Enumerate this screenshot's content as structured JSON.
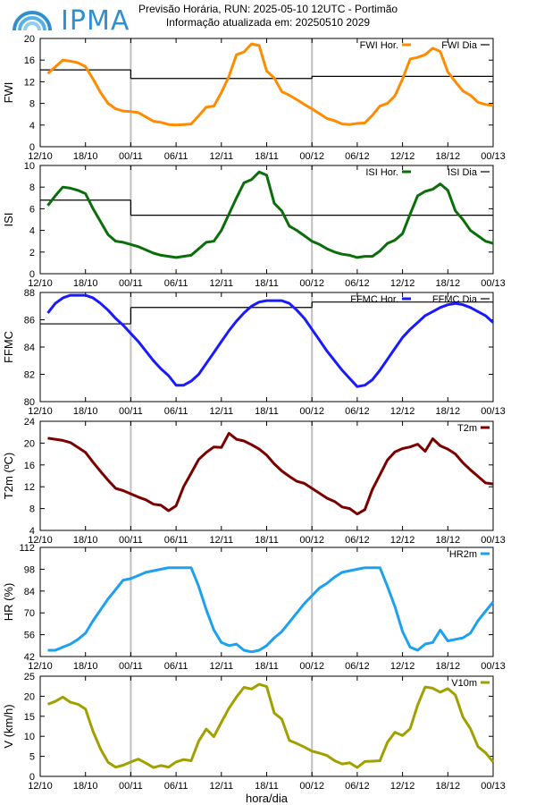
{
  "header": {
    "logo_text": "IPMA",
    "title_line1": "Previsão Horária, RUN: 2025-05-10 12UTC - Portimão",
    "title_line2": "Informação atualizada em: 20250510 2029"
  },
  "colors": {
    "fwi": "#ff8c00",
    "isi": "#0a6e0a",
    "ffmc": "#1a1aff",
    "t2m": "#7a0000",
    "hr2m": "#1ea0f0",
    "v10m": "#a0a000",
    "daily": "#000000",
    "dayline": "#c0c0c0"
  },
  "chart_data": [
    {
      "id": "fwi",
      "type": "line",
      "ylabel": "FWI",
      "ylim": [
        0,
        20
      ],
      "yticks": [
        "0",
        "4",
        "8",
        "12",
        "16",
        "20"
      ],
      "xticks": [
        "12/10",
        "18/10",
        "00/11",
        "06/11",
        "12/11",
        "18/11",
        "00/12",
        "06/12",
        "12/12",
        "18/12",
        "00/13"
      ],
      "legend": [
        "FWI Hor.",
        "FWI Dia"
      ],
      "series": [
        {
          "name": "FWI Hor.",
          "x": [
            13,
            15,
            16,
            17,
            18,
            19,
            20,
            21,
            22,
            23,
            24,
            25,
            26,
            27,
            28,
            29,
            30,
            31,
            32,
            33,
            34,
            35,
            36,
            37,
            38,
            39,
            40,
            41,
            42,
            43,
            44,
            45,
            46,
            47,
            48,
            49,
            50,
            51,
            52,
            53,
            54,
            55,
            56,
            57,
            58,
            59,
            60,
            61,
            62,
            63,
            64,
            65,
            66,
            67,
            68,
            69,
            70,
            71,
            72
          ],
          "y": [
            13.5,
            16,
            15.8,
            15.5,
            14.8,
            12.5,
            10,
            8,
            7,
            6.6,
            6.5,
            6.3,
            5.5,
            4.7,
            4.5,
            4.1,
            4,
            4.1,
            4.2,
            5.7,
            7.3,
            7.5,
            10,
            13,
            17,
            17.5,
            19,
            18.7,
            14,
            12.7,
            10.2,
            9.5,
            8.7,
            7.8,
            7,
            6.1,
            5.2,
            4.8,
            4.2,
            4.1,
            4.3,
            4.4,
            5.8,
            7.5,
            8,
            9.4,
            12.5,
            16.2,
            16.5,
            17,
            18.2,
            17.6,
            13.8,
            12,
            10.3,
            9.5,
            8.2,
            7.8,
            7.6
          ]
        }
      ],
      "daily": [
        {
          "from": 12,
          "to": 24,
          "y": 14.2
        },
        {
          "from": 24,
          "to": 48,
          "y": 12.6
        },
        {
          "from": 48,
          "to": 72,
          "y": 13.0
        }
      ]
    },
    {
      "id": "isi",
      "type": "line",
      "ylabel": "ISI",
      "ylim": [
        0,
        10
      ],
      "yticks": [
        "0",
        "2",
        "4",
        "6",
        "8",
        "10"
      ],
      "xticks": [
        "12/10",
        "18/10",
        "00/11",
        "06/11",
        "12/11",
        "18/11",
        "00/12",
        "06/12",
        "12/12",
        "18/12",
        "00/13"
      ],
      "legend": [
        "ISI Hor.",
        "ISI Dia"
      ],
      "series": [
        {
          "name": "ISI Hor.",
          "x": [
            13,
            14,
            15,
            16,
            17,
            18,
            19,
            20,
            21,
            22,
            23,
            24,
            25,
            26,
            27,
            28,
            29,
            30,
            31,
            32,
            33,
            34,
            35,
            36,
            37,
            38,
            39,
            40,
            41,
            42,
            43,
            44,
            45,
            46,
            47,
            48,
            49,
            50,
            51,
            52,
            53,
            54,
            55,
            56,
            57,
            58,
            59,
            60,
            61,
            62,
            63,
            64,
            65,
            66,
            67,
            68,
            69,
            70,
            71,
            72
          ],
          "y": [
            6.3,
            7.2,
            8,
            7.9,
            7.7,
            7.4,
            6,
            4.8,
            3.6,
            3,
            2.9,
            2.7,
            2.5,
            2.2,
            1.9,
            1.7,
            1.6,
            1.5,
            1.6,
            1.7,
            2.3,
            2.9,
            3,
            4,
            5.5,
            7,
            8.4,
            8.7,
            9.4,
            9.1,
            6.5,
            5.8,
            4.4,
            4,
            3.5,
            3,
            2.7,
            2.3,
            2,
            1.8,
            1.7,
            1.5,
            1.6,
            1.6,
            2.1,
            2.8,
            3.1,
            3.7,
            5.5,
            7.2,
            7.6,
            7.8,
            8.3,
            7.7,
            5.8,
            5,
            4,
            3.5,
            3,
            2.8
          ]
        }
      ],
      "daily": [
        {
          "from": 12,
          "to": 24,
          "y": 6.8
        },
        {
          "from": 24,
          "to": 48,
          "y": 5.4
        },
        {
          "from": 48,
          "to": 72,
          "y": 5.4
        }
      ]
    },
    {
      "id": "ffmc",
      "type": "line",
      "ylabel": "FFMC",
      "ylim": [
        80,
        88
      ],
      "yticks": [
        "80",
        "82",
        "84",
        "86",
        "88"
      ],
      "xticks": [
        "12/10",
        "18/10",
        "00/11",
        "06/11",
        "12/11",
        "18/11",
        "00/12",
        "06/12",
        "12/12",
        "18/12",
        "00/13"
      ],
      "legend": [
        "FFMC Hor.",
        "FFMC Dia"
      ],
      "series": [
        {
          "name": "FFMC Hor.",
          "x": [
            13,
            14,
            15,
            16,
            17,
            18,
            19,
            20,
            21,
            22,
            23,
            24,
            25,
            26,
            27,
            28,
            29,
            30,
            31,
            32,
            33,
            34,
            35,
            36,
            37,
            38,
            39,
            40,
            41,
            42,
            43,
            44,
            45,
            46,
            47,
            48,
            49,
            50,
            51,
            52,
            53,
            54,
            55,
            56,
            57,
            58,
            59,
            60,
            61,
            62,
            63,
            64,
            65,
            66,
            67,
            68,
            69,
            70,
            71,
            72
          ],
          "y": [
            86.5,
            87.2,
            87.6,
            87.8,
            87.8,
            87.8,
            87.6,
            87.2,
            86.7,
            86.1,
            85.6,
            85,
            84.4,
            83.7,
            83,
            82.4,
            81.9,
            81.2,
            81.2,
            81.5,
            82,
            82.8,
            83.6,
            84.4,
            85.2,
            85.9,
            86.5,
            87,
            87.3,
            87.4,
            87.4,
            87.4,
            87.2,
            86.7,
            86.1,
            85.3,
            84.5,
            83.7,
            83,
            82.3,
            81.7,
            81.1,
            81.2,
            81.6,
            82.3,
            83.1,
            83.9,
            84.7,
            85.3,
            85.8,
            86.3,
            86.6,
            86.9,
            87.1,
            87.2,
            87.1,
            86.9,
            86.6,
            86.3,
            85.8
          ]
        }
      ],
      "daily": [
        {
          "from": 12,
          "to": 24,
          "y": 85.7
        },
        {
          "from": 24,
          "to": 48,
          "y": 86.9
        },
        {
          "from": 48,
          "to": 72,
          "y": 87.3
        }
      ]
    },
    {
      "id": "t2m",
      "type": "line",
      "ylabel": "T2m (ºC)",
      "ylim": [
        4,
        24
      ],
      "yticks": [
        "4",
        "8",
        "12",
        "16",
        "20",
        "24"
      ],
      "xticks": [
        "12/10",
        "18/10",
        "00/11",
        "06/11",
        "12/11",
        "18/11",
        "00/12",
        "06/12",
        "12/12",
        "18/12",
        "00/13"
      ],
      "legend": [
        "T2m"
      ],
      "series": [
        {
          "name": "T2m",
          "x": [
            13,
            14,
            15,
            16,
            17,
            18,
            19,
            20,
            21,
            22,
            23,
            24,
            25,
            26,
            27,
            28,
            29,
            30,
            31,
            32,
            33,
            34,
            35,
            36,
            37,
            38,
            39,
            40,
            41,
            42,
            43,
            44,
            45,
            46,
            47,
            48,
            49,
            50,
            51,
            52,
            53,
            54,
            55,
            56,
            57,
            58,
            59,
            60,
            61,
            62,
            63,
            64,
            65,
            66,
            67,
            68,
            69,
            70,
            71,
            72
          ],
          "y": [
            20.9,
            20.7,
            20.5,
            20.1,
            19.2,
            18.3,
            16.5,
            14.8,
            13.2,
            11.7,
            11.3,
            10.7,
            10.1,
            9.6,
            8.8,
            8.6,
            7.6,
            8.5,
            12,
            14.5,
            17,
            18.3,
            19.3,
            19.2,
            21.8,
            20.7,
            20.4,
            19.7,
            18.9,
            17.8,
            16.2,
            14.9,
            13.9,
            13,
            12.6,
            11.7,
            10.8,
            9.9,
            9.3,
            8.3,
            8,
            7,
            7.8,
            11.5,
            14.2,
            16.9,
            18.4,
            19,
            19.3,
            19.8,
            18.5,
            20.8,
            19.5,
            18.9,
            18,
            16.4,
            15.1,
            13.9,
            12.7,
            12.5
          ]
        }
      ]
    },
    {
      "id": "hr2m",
      "type": "line",
      "ylabel": "HR (%)",
      "ylim": [
        42,
        112
      ],
      "yticks": [
        "42",
        "56",
        "70",
        "84",
        "98",
        "112"
      ],
      "xticks": [
        "12/10",
        "18/10",
        "00/11",
        "06/11",
        "12/11",
        "18/11",
        "00/12",
        "06/12",
        "12/12",
        "18/12",
        "00/13"
      ],
      "legend": [
        "HR2m"
      ],
      "series": [
        {
          "name": "HR2m",
          "x": [
            13,
            14,
            15,
            16,
            17,
            18,
            19,
            20,
            21,
            22,
            23,
            24,
            25,
            26,
            27,
            28,
            29,
            30,
            31,
            32,
            33,
            34,
            35,
            36,
            37,
            38,
            39,
            40,
            41,
            42,
            43,
            44,
            45,
            46,
            47,
            48,
            49,
            50,
            51,
            52,
            53,
            54,
            55,
            56,
            57,
            58,
            59,
            60,
            61,
            62,
            63,
            64,
            65,
            66,
            67,
            68,
            69,
            70,
            71,
            72
          ],
          "y": [
            46,
            46,
            48,
            50,
            53,
            57,
            65,
            72,
            79,
            85,
            91,
            92,
            94,
            96,
            97,
            98,
            99,
            99,
            99,
            99,
            87,
            72,
            59,
            51,
            49,
            50,
            46,
            45,
            46,
            49,
            54,
            58,
            64,
            70,
            76,
            81,
            86,
            89,
            93,
            96,
            97,
            98,
            99,
            99,
            99,
            87,
            74,
            58,
            48,
            46,
            50,
            51,
            59,
            52,
            53,
            54,
            57,
            65,
            71,
            77
          ]
        }
      ]
    },
    {
      "id": "v10m",
      "type": "line",
      "ylabel": "V (km/h)",
      "ylim": [
        0,
        25
      ],
      "yticks": [
        "0",
        "5",
        "10",
        "15",
        "20",
        "25"
      ],
      "xticks": [
        "12/10",
        "18/10",
        "00/11",
        "06/11",
        "12/11",
        "18/11",
        "00/12",
        "06/12",
        "12/12",
        "18/12",
        "00/13"
      ],
      "xlabel": "hora/dia",
      "legend": [
        "V10m"
      ],
      "series": [
        {
          "name": "V10m",
          "x": [
            13,
            14,
            15,
            16,
            17,
            18,
            19,
            20,
            21,
            22,
            23,
            24,
            25,
            26,
            27,
            28,
            29,
            30,
            31,
            32,
            33,
            34,
            35,
            36,
            37,
            38,
            39,
            40,
            41,
            42,
            43,
            44,
            45,
            46,
            47,
            48,
            49,
            50,
            51,
            52,
            53,
            54,
            55,
            56,
            57,
            58,
            59,
            60,
            61,
            62,
            63,
            64,
            65,
            66,
            67,
            68,
            69,
            70,
            71,
            72
          ],
          "y": [
            18,
            18.7,
            19.8,
            18.5,
            18,
            16.8,
            11.2,
            6.8,
            3.5,
            2.3,
            2.8,
            3.6,
            4.3,
            3.3,
            2.2,
            2.7,
            2.3,
            3.6,
            4.2,
            3.9,
            8.8,
            11.8,
            9.9,
            13.5,
            17,
            19.8,
            22.2,
            21.8,
            23,
            22.4,
            15.8,
            14.3,
            9,
            8.2,
            7.3,
            6.3,
            5.8,
            5.2,
            3.9,
            3.1,
            3.4,
            2.2,
            3.7,
            3.8,
            3.9,
            8.5,
            11,
            10.2,
            11.9,
            17.8,
            22.3,
            22,
            21,
            21.9,
            20.3,
            14.8,
            11.9,
            7.4,
            5.9,
            3.6
          ]
        }
      ]
    }
  ]
}
